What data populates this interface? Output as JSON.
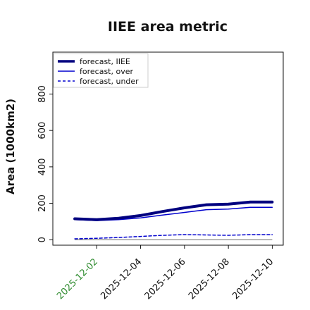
{
  "chart_data": {
    "type": "line",
    "title": "IIEE area metric",
    "xlabel": "",
    "ylabel": "Area (1000km2)",
    "x": [
      "2025-12-01",
      "2025-12-02",
      "2025-12-03",
      "2025-12-04",
      "2025-12-05",
      "2025-12-06",
      "2025-12-07",
      "2025-12-08",
      "2025-12-09",
      "2025-12-10"
    ],
    "xticks": [
      "2025-12-02",
      "2025-12-04",
      "2025-12-06",
      "2025-12-08",
      "2025-12-10"
    ],
    "xtick_colors": [
      "#2e8b2e",
      "#111111",
      "#111111",
      "#111111",
      "#111111"
    ],
    "xlim": [
      "2025-11-30",
      "2025-12-10.5"
    ],
    "ylim": [
      -30,
      1030
    ],
    "yticks": [
      0,
      200,
      400,
      600,
      800
    ],
    "grid": false,
    "legend_position": "top-left",
    "series": [
      {
        "name": "forecast, IIEE",
        "color": "#00007f",
        "style": "solid",
        "width": 4,
        "values": [
          115,
          110,
          118,
          133,
          155,
          175,
          192,
          195,
          207,
          207
        ]
      },
      {
        "name": "forecast, over",
        "color": "#0000cd",
        "style": "solid",
        "width": 1.5,
        "values": [
          110,
          105,
          110,
          120,
          135,
          150,
          165,
          168,
          178,
          178
        ]
      },
      {
        "name": "forecast, under",
        "color": "#0000cd",
        "style": "dashed",
        "width": 1.5,
        "values": [
          5,
          8,
          12,
          18,
          24,
          28,
          26,
          24,
          28,
          28
        ]
      }
    ],
    "zero_line": {
      "value": 0,
      "color": "#888888"
    }
  }
}
